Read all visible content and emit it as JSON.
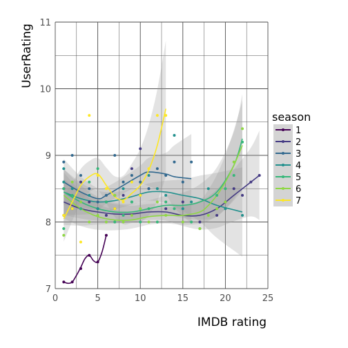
{
  "chart_data": {
    "type": "scatter",
    "xlabel": "IMDB rating",
    "ylabel": "UserRating",
    "xlim": [
      0,
      25
    ],
    "ylim": [
      7,
      11
    ],
    "x_ticks": [
      "0",
      "5",
      "10",
      "15",
      "20",
      "25"
    ],
    "y_ticks": [
      "7",
      "8",
      "9",
      "10",
      "11"
    ],
    "grid": true,
    "legend": {
      "title": "season",
      "placement": "right"
    },
    "series": [
      {
        "name": "1",
        "color": "#440154",
        "points": [
          [
            1,
            7.1
          ],
          [
            2,
            7.1
          ],
          [
            3,
            7.3
          ],
          [
            4,
            7.5
          ],
          [
            5,
            7.4
          ],
          [
            6,
            7.8
          ]
        ],
        "trend": [
          [
            1,
            7.1
          ],
          [
            1.5,
            7.08
          ],
          [
            2,
            7.1
          ],
          [
            2.5,
            7.2
          ],
          [
            3,
            7.32
          ],
          [
            3.5,
            7.45
          ],
          [
            4,
            7.5
          ],
          [
            4.5,
            7.42
          ],
          [
            5,
            7.4
          ],
          [
            5.5,
            7.55
          ],
          [
            6,
            7.8
          ]
        ]
      },
      {
        "name": "2",
        "color": "#443a83",
        "points": [
          [
            1,
            8.1
          ],
          [
            1,
            8.5
          ],
          [
            2,
            8.2
          ],
          [
            3,
            8.6
          ],
          [
            4,
            8.3
          ],
          [
            5,
            8.2
          ],
          [
            6,
            8.1
          ],
          [
            7,
            8.2
          ],
          [
            8,
            8.4
          ],
          [
            9,
            8.8
          ],
          [
            10,
            9.1
          ],
          [
            11,
            8.5
          ],
          [
            13,
            8.2
          ],
          [
            15,
            8.3
          ],
          [
            17,
            8.0
          ],
          [
            19,
            8.1
          ],
          [
            20,
            8.3
          ],
          [
            21,
            8.5
          ],
          [
            22,
            8.4
          ],
          [
            23,
            8.6
          ],
          [
            24,
            8.7
          ]
        ],
        "trend": [
          [
            1,
            8.3
          ],
          [
            3,
            8.2
          ],
          [
            5,
            8.15
          ],
          [
            7,
            8.12
          ],
          [
            9,
            8.12
          ],
          [
            11,
            8.15
          ],
          [
            13,
            8.15
          ],
          [
            15,
            8.1
          ],
          [
            17,
            8.1
          ],
          [
            19,
            8.2
          ],
          [
            21,
            8.4
          ],
          [
            23,
            8.6
          ],
          [
            24,
            8.7
          ]
        ]
      },
      {
        "name": "3",
        "color": "#31688e",
        "points": [
          [
            1,
            8.9
          ],
          [
            2,
            9.0
          ],
          [
            3,
            8.7
          ],
          [
            4,
            8.5
          ],
          [
            5,
            8.3
          ],
          [
            6,
            8.4
          ],
          [
            7,
            9.0
          ],
          [
            8,
            8.6
          ],
          [
            9,
            8.7
          ],
          [
            10,
            8.6
          ],
          [
            11,
            8.5
          ],
          [
            12,
            8.8
          ],
          [
            13,
            8.7
          ],
          [
            14,
            8.9
          ],
          [
            15,
            8.6
          ],
          [
            16,
            8.9
          ]
        ],
        "trend": [
          [
            1,
            8.6
          ],
          [
            3,
            8.45
          ],
          [
            5,
            8.35
          ],
          [
            6,
            8.4
          ],
          [
            8,
            8.55
          ],
          [
            10,
            8.7
          ],
          [
            11,
            8.75
          ],
          [
            13,
            8.72
          ],
          [
            14,
            8.68
          ],
          [
            16,
            8.65
          ]
        ]
      },
      {
        "name": "4",
        "color": "#21908d",
        "points": [
          [
            1,
            8.6
          ],
          [
            1,
            8.8
          ],
          [
            2,
            8.5
          ],
          [
            3,
            8.2
          ],
          [
            4,
            8.4
          ],
          [
            5,
            8.2
          ],
          [
            6,
            8.3
          ],
          [
            7,
            8.4
          ],
          [
            8,
            8.5
          ],
          [
            9,
            8.3
          ],
          [
            10,
            8.4
          ],
          [
            11,
            8.7
          ],
          [
            12,
            8.5
          ],
          [
            13,
            8.4
          ],
          [
            14,
            9.3
          ],
          [
            15,
            8.2
          ],
          [
            16,
            8.3
          ],
          [
            18,
            8.5
          ],
          [
            20,
            8.2
          ],
          [
            22,
            8.1
          ]
        ],
        "trend": [
          [
            1,
            8.45
          ],
          [
            3,
            8.35
          ],
          [
            5,
            8.3
          ],
          [
            7,
            8.32
          ],
          [
            9,
            8.38
          ],
          [
            11,
            8.45
          ],
          [
            13,
            8.45
          ],
          [
            15,
            8.4
          ],
          [
            17,
            8.35
          ],
          [
            19,
            8.25
          ],
          [
            22,
            8.15
          ]
        ]
      },
      {
        "name": "5",
        "color": "#35b779",
        "points": [
          [
            1,
            7.9
          ],
          [
            1,
            8.5
          ],
          [
            2,
            8.4
          ],
          [
            3,
            8.2
          ],
          [
            4,
            8.6
          ],
          [
            5,
            8.8
          ],
          [
            6,
            8.3
          ],
          [
            7,
            8.0
          ],
          [
            8,
            8.1
          ],
          [
            9,
            8.3
          ],
          [
            10,
            8.0
          ],
          [
            11,
            8.2
          ],
          [
            12,
            8.0
          ],
          [
            13,
            8.3
          ],
          [
            14,
            8.2
          ],
          [
            16,
            8.0
          ],
          [
            17,
            7.9
          ],
          [
            19,
            8.4
          ],
          [
            20,
            8.5
          ],
          [
            21,
            8.7
          ],
          [
            22,
            9.2
          ]
        ],
        "trend": [
          [
            1,
            8.45
          ],
          [
            3,
            8.3
          ],
          [
            5,
            8.2
          ],
          [
            7,
            8.15
          ],
          [
            9,
            8.15
          ],
          [
            11,
            8.2
          ],
          [
            13,
            8.25
          ],
          [
            15,
            8.25
          ],
          [
            17,
            8.3
          ],
          [
            19,
            8.45
          ],
          [
            21,
            8.85
          ],
          [
            22,
            9.25
          ]
        ]
      },
      {
        "name": "6",
        "color": "#8fd744",
        "points": [
          [
            1,
            7.8
          ],
          [
            2,
            8.6
          ],
          [
            3,
            8.3
          ],
          [
            4,
            8.0
          ],
          [
            5,
            8.1
          ],
          [
            6,
            8.0
          ],
          [
            7,
            8.4
          ],
          [
            8,
            8.0
          ],
          [
            9,
            8.1
          ],
          [
            10,
            8.2
          ],
          [
            11,
            8.0
          ],
          [
            12,
            8.3
          ],
          [
            13,
            8.1
          ],
          [
            15,
            8.0
          ],
          [
            17,
            7.9
          ],
          [
            18,
            8.1
          ],
          [
            19,
            8.2
          ],
          [
            20,
            8.3
          ],
          [
            21,
            8.9
          ],
          [
            22,
            9.4
          ]
        ],
        "trend": [
          [
            1,
            8.4
          ],
          [
            3,
            8.2
          ],
          [
            5,
            8.08
          ],
          [
            7,
            8.03
          ],
          [
            9,
            8.03
          ],
          [
            11,
            8.08
          ],
          [
            13,
            8.1
          ],
          [
            15,
            8.1
          ],
          [
            17,
            8.15
          ],
          [
            18,
            8.25
          ],
          [
            19,
            8.4
          ],
          [
            20,
            8.6
          ],
          [
            21,
            8.85
          ],
          [
            22,
            9.15
          ]
        ]
      },
      {
        "name": "7",
        "color": "#fde725",
        "points": [
          [
            1,
            8.1
          ],
          [
            2,
            8.2
          ],
          [
            3,
            7.7
          ],
          [
            4,
            9.6
          ],
          [
            5,
            8.7
          ],
          [
            6,
            8.5
          ],
          [
            7,
            8.2
          ],
          [
            8,
            8.3
          ],
          [
            9,
            8.6
          ],
          [
            10,
            8.4
          ],
          [
            11,
            8.8
          ],
          [
            12,
            9.6
          ],
          [
            13,
            9.6
          ]
        ],
        "trend": [
          [
            1,
            8.05
          ],
          [
            2,
            8.3
          ],
          [
            3,
            8.55
          ],
          [
            4,
            8.68
          ],
          [
            5,
            8.72
          ],
          [
            6,
            8.55
          ],
          [
            7,
            8.38
          ],
          [
            8,
            8.33
          ],
          [
            9,
            8.43
          ],
          [
            10,
            8.55
          ],
          [
            11,
            8.78
          ],
          [
            12,
            9.15
          ],
          [
            13,
            9.7
          ]
        ]
      }
    ]
  }
}
